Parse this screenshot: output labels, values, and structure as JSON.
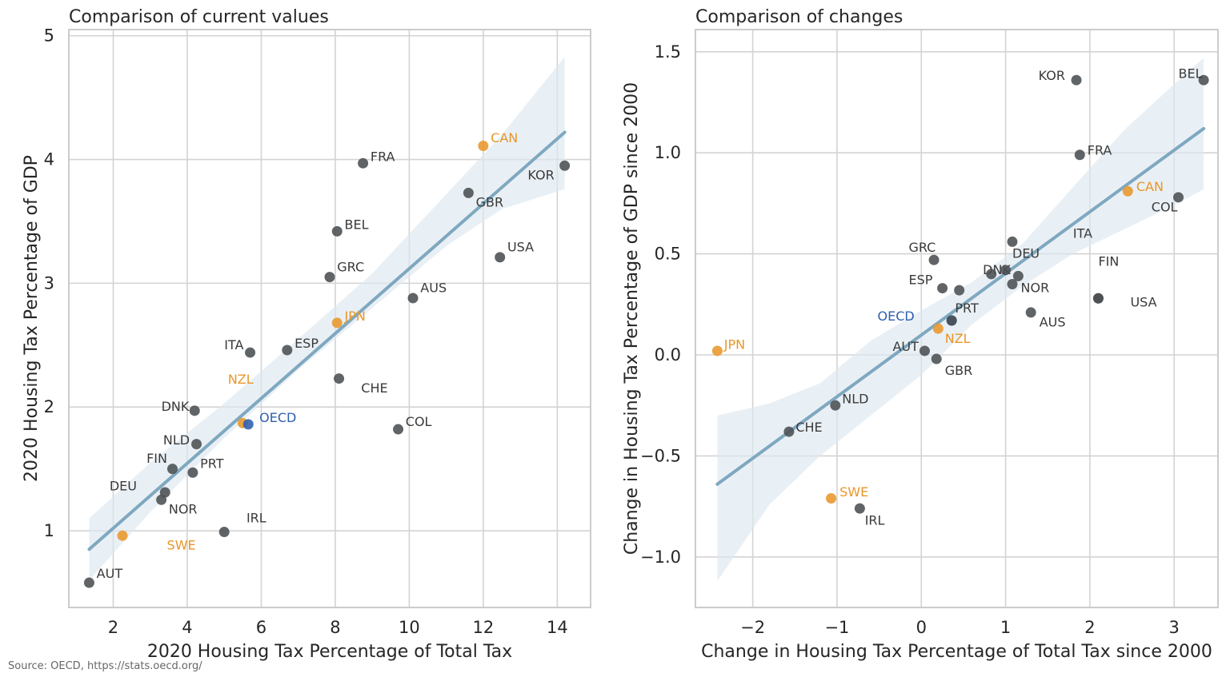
{
  "source": "Source: OECD, https://stats.oecd.org/",
  "colors": {
    "default_point": "#4a4f52",
    "highlight_point": "#e8962a",
    "oecd_point": "#2e5fb0",
    "regression_line": "#7fa8c0",
    "confidence_band": "#dde8ef",
    "grid": "#d3d3d3",
    "axis_frame": "#cccccc"
  },
  "chart_data": [
    {
      "type": "scatter",
      "title": "Comparison of current values",
      "xlabel": "2020 Housing Tax Percentage of Total Tax",
      "ylabel": "2020 Housing Tax Percentage of GDP",
      "xlim": [
        0.8,
        14.9
      ],
      "ylim": [
        0.38,
        5.05
      ],
      "xticks": [
        2,
        4,
        6,
        8,
        10,
        12,
        14
      ],
      "yticks": [
        1,
        2,
        3,
        4,
        5
      ],
      "xtick_labels": [
        "2",
        "4",
        "6",
        "8",
        "10",
        "12",
        "14"
      ],
      "ytick_labels": [
        "1",
        "2",
        "3",
        "4",
        "5"
      ],
      "grid": true,
      "regression": {
        "x0": 1.35,
        "y0": 0.85,
        "x1": 14.2,
        "y1": 4.22
      },
      "band": {
        "x": [
          1.35,
          3.0,
          5.0,
          7.0,
          9.0,
          11.0,
          12.5,
          14.2
        ],
        "upper": [
          1.1,
          1.55,
          2.03,
          2.55,
          3.08,
          3.72,
          4.2,
          4.83
        ],
        "lower": [
          0.6,
          1.15,
          1.75,
          2.3,
          2.8,
          3.3,
          3.6,
          3.76
        ]
      },
      "points": [
        {
          "label": "AUT",
          "x": 1.35,
          "y": 0.58,
          "group": "default",
          "lx": 0.2,
          "ly": 0.07
        },
        {
          "label": "SWE",
          "x": 2.25,
          "y": 0.96,
          "group": "highlight",
          "lx": 1.2,
          "ly": -0.08
        },
        {
          "label": "NOR",
          "x": 3.3,
          "y": 1.25,
          "group": "default",
          "lx": 0.2,
          "ly": -0.08
        },
        {
          "label": "DEU",
          "x": 3.4,
          "y": 1.31,
          "group": "default",
          "lx": -1.5,
          "ly": 0.05
        },
        {
          "label": "FIN",
          "x": 3.6,
          "y": 1.5,
          "group": "default",
          "lx": -0.7,
          "ly": 0.08
        },
        {
          "label": "PRT",
          "x": 4.15,
          "y": 1.47,
          "group": "default",
          "lx": 0.2,
          "ly": 0.07
        },
        {
          "label": "NLD",
          "x": 4.25,
          "y": 1.7,
          "group": "default",
          "lx": -0.9,
          "ly": 0.03
        },
        {
          "label": "DNK",
          "x": 4.2,
          "y": 1.97,
          "group": "default",
          "lx": -0.9,
          "ly": 0.03
        },
        {
          "label": "IRL",
          "x": 5.0,
          "y": 0.99,
          "group": "default",
          "lx": 0.6,
          "ly": 0.11
        },
        {
          "label": "NZL",
          "x": 5.5,
          "y": 1.87,
          "group": "highlight",
          "lx": -0.4,
          "ly": 0.35
        },
        {
          "label": "OECD",
          "x": 5.65,
          "y": 1.86,
          "group": "oecd",
          "lx": 0.3,
          "ly": 0.05
        },
        {
          "label": "ITA",
          "x": 5.7,
          "y": 2.44,
          "group": "default",
          "lx": -0.7,
          "ly": 0.06
        },
        {
          "label": "ESP",
          "x": 6.7,
          "y": 2.46,
          "group": "default",
          "lx": 0.2,
          "ly": 0.05
        },
        {
          "label": "GRC",
          "x": 7.85,
          "y": 3.05,
          "group": "default",
          "lx": 0.2,
          "ly": 0.08
        },
        {
          "label": "JPN",
          "x": 8.05,
          "y": 2.68,
          "group": "highlight",
          "lx": 0.2,
          "ly": 0.05
        },
        {
          "label": "CHE",
          "x": 8.1,
          "y": 2.23,
          "group": "default",
          "lx": 0.6,
          "ly": -0.08
        },
        {
          "label": "BEL",
          "x": 8.05,
          "y": 3.42,
          "group": "default",
          "lx": 0.2,
          "ly": 0.05
        },
        {
          "label": "FRA",
          "x": 8.75,
          "y": 3.97,
          "group": "default",
          "lx": 0.2,
          "ly": 0.05
        },
        {
          "label": "COL",
          "x": 9.7,
          "y": 1.82,
          "group": "default",
          "lx": 0.2,
          "ly": 0.06
        },
        {
          "label": "AUS",
          "x": 10.1,
          "y": 2.88,
          "group": "default",
          "lx": 0.2,
          "ly": 0.08
        },
        {
          "label": "GBR",
          "x": 11.6,
          "y": 3.73,
          "group": "default",
          "lx": 0.2,
          "ly": -0.08
        },
        {
          "label": "CAN",
          "x": 12.0,
          "y": 4.11,
          "group": "highlight",
          "lx": 0.2,
          "ly": 0.06
        },
        {
          "label": "USA",
          "x": 12.45,
          "y": 3.21,
          "group": "default",
          "lx": 0.2,
          "ly": 0.08
        },
        {
          "label": "KOR",
          "x": 14.2,
          "y": 3.95,
          "group": "default",
          "lx": -1.0,
          "ly": -0.08
        }
      ]
    },
    {
      "type": "scatter",
      "title": "Comparison of changes",
      "xlabel": "Change in Housing Tax Percentage of Total Tax since 2000",
      "ylabel": "Change in Housing Tax Percentage of GDP since 2000",
      "xlim": [
        -2.68,
        3.52
      ],
      "ylim": [
        -1.25,
        1.61
      ],
      "xticks": [
        -2,
        -1,
        0,
        1,
        2,
        3
      ],
      "yticks": [
        -1.0,
        -0.5,
        0.0,
        0.5,
        1.0,
        1.5
      ],
      "xtick_labels": [
        "−2",
        "−1",
        "0",
        "1",
        "2",
        "3"
      ],
      "ytick_labels": [
        "−1.0",
        "−0.5",
        "0.0",
        "0.5",
        "1.0",
        "1.5"
      ],
      "grid": true,
      "regression": {
        "x0": -2.42,
        "y0": -0.64,
        "x1": 3.35,
        "y1": 1.12
      },
      "band": {
        "x": [
          -2.42,
          -1.8,
          -1.2,
          -0.6,
          0.0,
          0.6,
          1.2,
          1.8,
          2.4,
          3.0,
          3.35
        ],
        "upper": [
          -0.3,
          -0.24,
          -0.14,
          0.07,
          0.22,
          0.36,
          0.55,
          0.83,
          1.11,
          1.34,
          1.47
        ],
        "lower": [
          -1.12,
          -0.74,
          -0.5,
          -0.3,
          -0.1,
          0.15,
          0.34,
          0.5,
          0.62,
          0.74,
          0.82
        ]
      },
      "points": [
        {
          "label": "JPN",
          "x": -2.42,
          "y": 0.02,
          "group": "highlight",
          "lx": 0.08,
          "ly": 0.03
        },
        {
          "label": "CHE",
          "x": -1.57,
          "y": -0.38,
          "group": "default",
          "lx": 0.08,
          "ly": 0.02
        },
        {
          "label": "SWE",
          "x": -1.07,
          "y": -0.71,
          "group": "highlight",
          "lx": 0.1,
          "ly": 0.03
        },
        {
          "label": "NLD",
          "x": -1.02,
          "y": -0.25,
          "group": "default",
          "lx": 0.08,
          "ly": 0.03
        },
        {
          "label": "IRL",
          "x": -0.73,
          "y": -0.76,
          "group": "default",
          "lx": 0.06,
          "ly": -0.06
        },
        {
          "label": "AUT",
          "x": 0.04,
          "y": 0.02,
          "group": "default",
          "lx": -0.38,
          "ly": 0.02
        },
        {
          "label": "GBR",
          "x": 0.18,
          "y": -0.02,
          "group": "default",
          "lx": 0.1,
          "ly": -0.06
        },
        {
          "label": "NZL",
          "x": 0.2,
          "y": 0.13,
          "group": "highlight",
          "lx": 0.08,
          "ly": -0.05
        },
        {
          "label": "OECD",
          "x": 0.36,
          "y": 0.17,
          "group": "oecd",
          "lx": -0.88,
          "ly": 0.02
        },
        {
          "label": "PRT",
          "x": 0.36,
          "y": 0.17,
          "group": "default",
          "lx": 0.04,
          "ly": 0.06
        },
        {
          "label": "GRC",
          "x": 0.15,
          "y": 0.47,
          "group": "default",
          "lx": -0.3,
          "ly": 0.06
        },
        {
          "label": "ESP",
          "x": 0.25,
          "y": 0.33,
          "group": "default",
          "lx": -0.4,
          "ly": 0.04
        },
        {
          "label": "DNK",
          "x": 0.45,
          "y": 0.32,
          "group": "default",
          "lx": 0.28,
          "ly": 0.1
        },
        {
          "label": "DEU",
          "x": 0.83,
          "y": 0.4,
          "group": "default",
          "lx": 0.25,
          "ly": 0.1
        },
        {
          "label": "ITA",
          "x": 1.0,
          "y": 0.42,
          "group": "default",
          "lx": 0.8,
          "ly": 0.18
        },
        {
          "label": "X1",
          "x": 1.08,
          "y": 0.56,
          "group": "default",
          "unlabeled": true
        },
        {
          "label": "NOR",
          "x": 1.08,
          "y": 0.35,
          "group": "default",
          "lx": 0.1,
          "ly": -0.02
        },
        {
          "label": "X2",
          "x": 1.15,
          "y": 0.39,
          "group": "default",
          "unlabeled": true
        },
        {
          "label": "AUS",
          "x": 1.3,
          "y": 0.21,
          "group": "default",
          "lx": 0.1,
          "ly": -0.05
        },
        {
          "label": "FIN",
          "x": 2.1,
          "y": 0.28,
          "group": "default",
          "lx": 0.0,
          "ly": 0.18
        },
        {
          "label": "USA",
          "x": 2.1,
          "y": 0.28,
          "group": "default",
          "lx": 0.38,
          "ly": -0.02
        },
        {
          "label": "KOR",
          "x": 1.84,
          "y": 1.36,
          "group": "default",
          "lx": -0.45,
          "ly": 0.02
        },
        {
          "label": "FRA",
          "x": 1.88,
          "y": 0.99,
          "group": "default",
          "lx": 0.09,
          "ly": 0.02
        },
        {
          "label": "CAN",
          "x": 2.45,
          "y": 0.81,
          "group": "highlight",
          "lx": 0.1,
          "ly": 0.02
        },
        {
          "label": "COL",
          "x": 3.05,
          "y": 0.78,
          "group": "default",
          "lx": -0.32,
          "ly": -0.05
        },
        {
          "label": "BEL",
          "x": 3.35,
          "y": 1.36,
          "group": "default",
          "lx": -0.3,
          "ly": 0.03
        }
      ]
    }
  ]
}
